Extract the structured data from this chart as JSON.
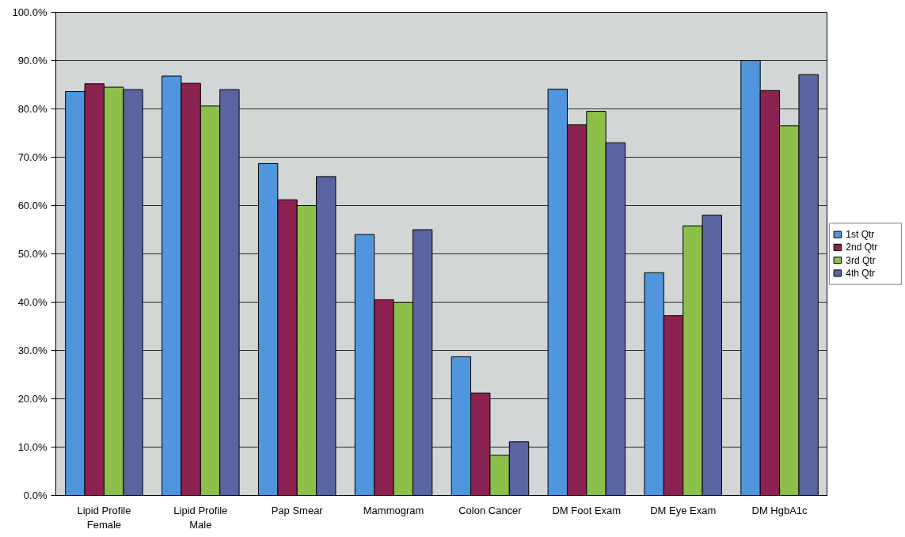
{
  "chart_data": {
    "type": "bar",
    "categories": [
      "Lipid Profile\nFemale",
      "Lipid Profile\nMale",
      "Pap Smear",
      "Mammogram",
      "Colon Cancer",
      "DM Foot Exam",
      "DM Eye Exam",
      "DM HgbA1c"
    ],
    "series": [
      {
        "name": "1st Qtr",
        "color": "#4f96dc",
        "values": [
          83.6,
          86.8,
          68.7,
          54.0,
          28.7,
          84.1,
          46.1,
          90.0
        ]
      },
      {
        "name": "2nd Qtr",
        "color": "#8b2252",
        "values": [
          85.2,
          85.3,
          61.2,
          40.5,
          21.2,
          76.7,
          37.2,
          83.8
        ]
      },
      {
        "name": "3rd Qtr",
        "color": "#8cc04a",
        "values": [
          84.5,
          80.6,
          60.0,
          40.0,
          8.3,
          79.5,
          55.8,
          76.5
        ]
      },
      {
        "name": "4th Qtr",
        "color": "#5a64a0",
        "values": [
          84.0,
          84.0,
          66.0,
          55.0,
          11.1,
          73.0,
          58.0,
          87.1
        ]
      }
    ],
    "ylim": [
      0,
      100
    ],
    "yticks": [
      {
        "value": 0,
        "label": "0.0%"
      },
      {
        "value": 10,
        "label": "10.0%"
      },
      {
        "value": 20,
        "label": "20.0%"
      },
      {
        "value": 30,
        "label": "30.0%"
      },
      {
        "value": 40,
        "label": "40.0%"
      },
      {
        "value": 50,
        "label": "50.0%"
      },
      {
        "value": 60,
        "label": "60.0%"
      },
      {
        "value": 70,
        "label": "70.0%"
      },
      {
        "value": 80,
        "label": "80.0%"
      },
      {
        "value": 90,
        "label": "90.0%"
      },
      {
        "value": 100,
        "label": "100.0%"
      }
    ],
    "grid": "y",
    "legend": "right"
  }
}
